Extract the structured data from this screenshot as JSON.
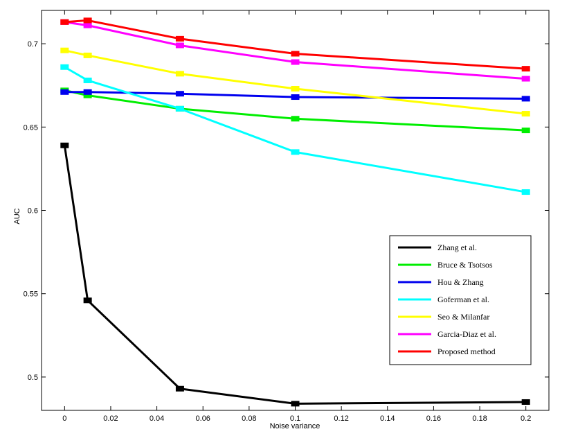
{
  "chart_data": {
    "type": "line",
    "title": "",
    "xlabel": "Noise variance",
    "ylabel": "AUC",
    "xlim": [
      -0.01,
      0.21
    ],
    "ylim": [
      0.48,
      0.72
    ],
    "xticks": [
      0,
      0.02,
      0.04,
      0.06,
      0.08,
      0.1,
      0.12,
      0.14,
      0.16,
      0.18,
      0.2
    ],
    "xtick_labels": [
      "0",
      "0.02",
      "0.04",
      "0.06",
      "0.08",
      "0.1",
      "0.12",
      "0.14",
      "0.16",
      "0.18",
      "0.2"
    ],
    "yticks": [
      0.5,
      0.55,
      0.6,
      0.65,
      0.7
    ],
    "ytick_labels": [
      "0.5",
      "0.55",
      "0.6",
      "0.65",
      "0.7"
    ],
    "grid": false,
    "legend_position": "lower-right",
    "x": [
      0,
      0.01,
      0.05,
      0.1,
      0.2
    ],
    "series": [
      {
        "name": "Zhang et al.",
        "color": "#000000",
        "values": [
          0.639,
          0.546,
          0.493,
          0.484,
          0.485
        ]
      },
      {
        "name": "Bruce & Tsotsos",
        "color": "#00ee00",
        "values": [
          0.672,
          0.669,
          0.661,
          0.655,
          0.648
        ]
      },
      {
        "name": "Hou & Zhang",
        "color": "#0000ee",
        "values": [
          0.671,
          0.671,
          0.67,
          0.668,
          0.667
        ]
      },
      {
        "name": "Goferman et al.",
        "color": "#00ffff",
        "values": [
          0.686,
          0.678,
          0.661,
          0.635,
          0.611
        ]
      },
      {
        "name": "Seo & Milanfar",
        "color": "#ffff00",
        "values": [
          0.696,
          0.693,
          0.682,
          0.673,
          0.658
        ]
      },
      {
        "name": "Garcia-Diaz et al.",
        "color": "#ff00ff",
        "values": [
          0.713,
          0.711,
          0.699,
          0.689,
          0.679
        ]
      },
      {
        "name": "Proposed method",
        "color": "#ff0000",
        "values": [
          0.713,
          0.714,
          0.703,
          0.694,
          0.685
        ]
      }
    ]
  }
}
